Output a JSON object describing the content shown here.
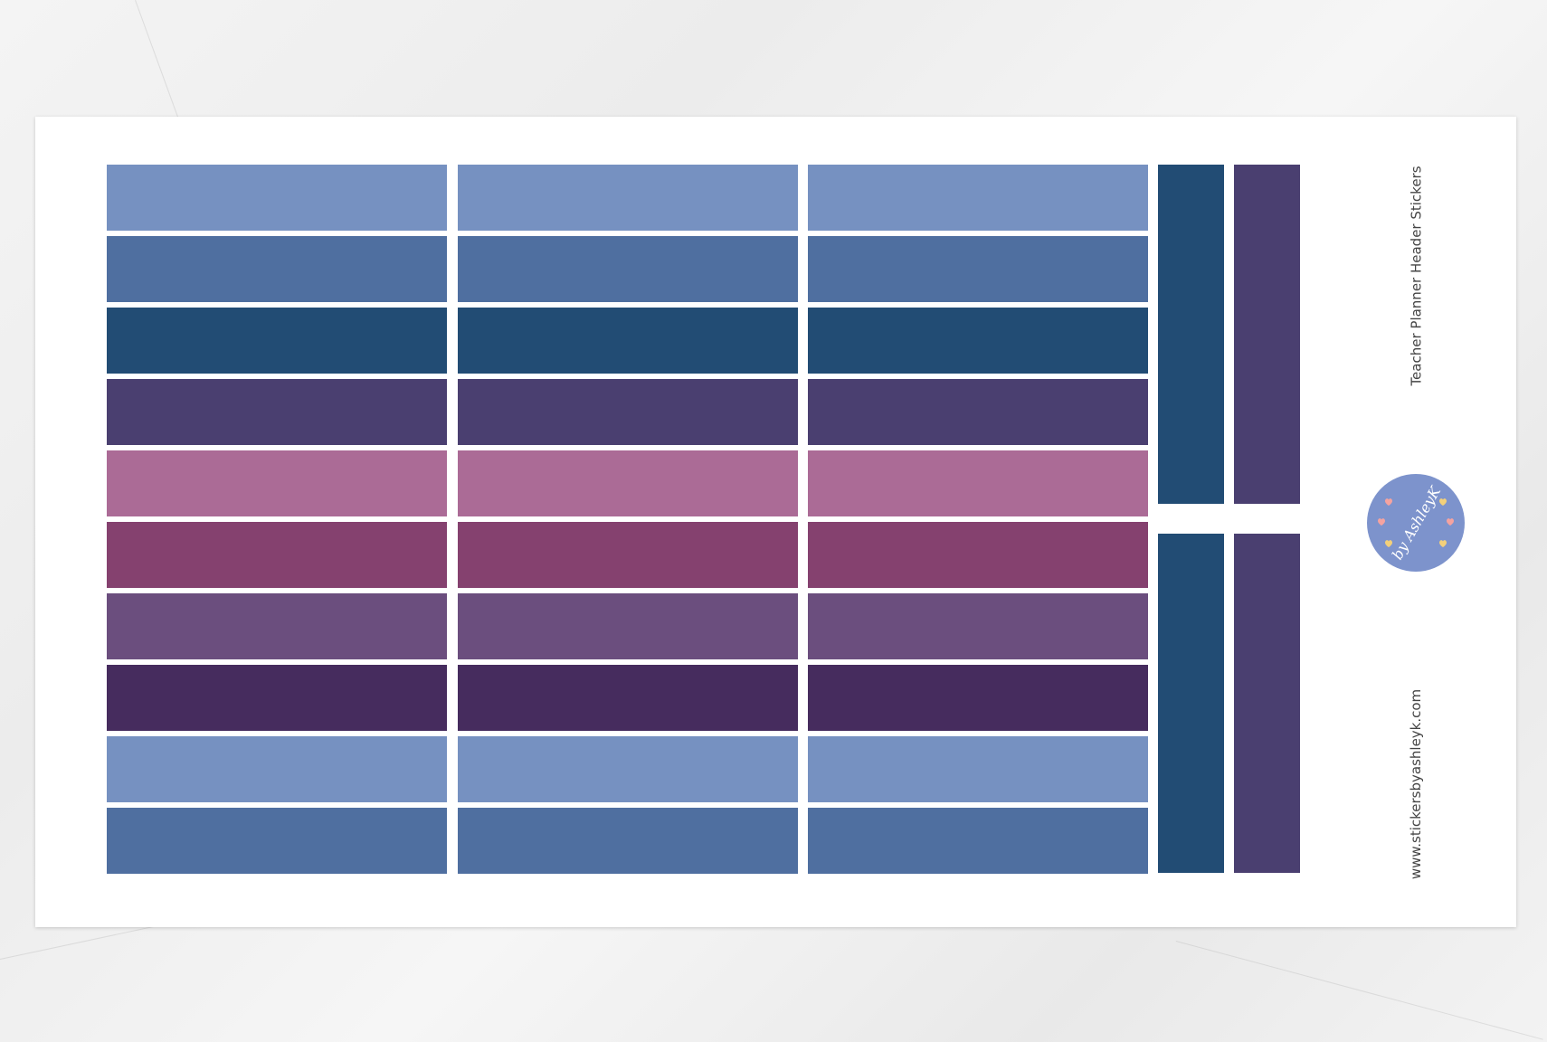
{
  "sheet": {
    "title": "Teacher Planner Header Stickers",
    "website": "www.stickersbyashleyk.com",
    "logo_text": "by AshleyK",
    "logo_color": "#7d93cc"
  },
  "row_colors": [
    "#7691c1",
    "#4f6fa0",
    "#224c74",
    "#4a3f70",
    "#ab6b96",
    "#85416f",
    "#6b4e7e",
    "#462c5e",
    "#7691c1",
    "#4f6fa0"
  ],
  "columns": 3,
  "vertical_strips": [
    {
      "color": "#224c74"
    },
    {
      "color": "#4a3f70"
    },
    {
      "color": "#224c74"
    },
    {
      "color": "#4a3f70"
    }
  ]
}
